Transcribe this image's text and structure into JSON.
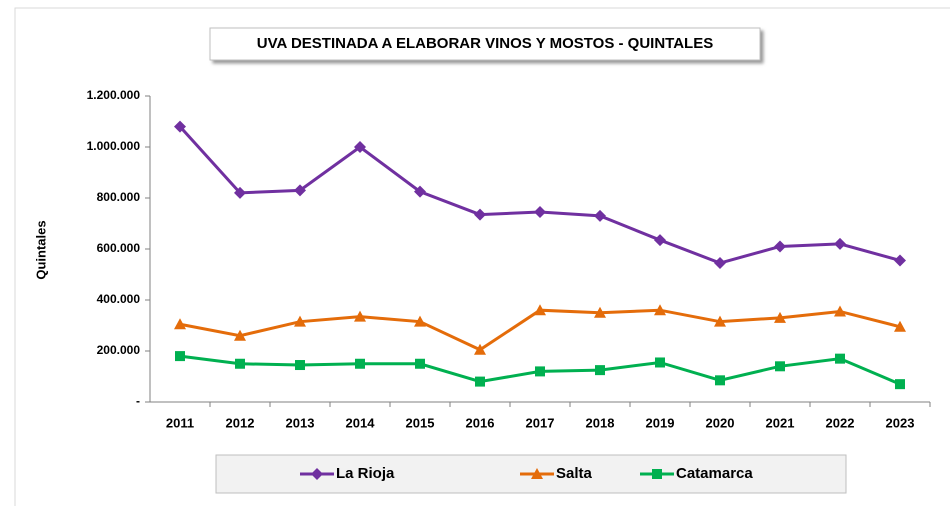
{
  "chart_data": {
    "type": "line",
    "title": "UVA DESTINADA A ELABORAR VINOS Y MOSTOS - QUINTALES",
    "y_label": "Quintales",
    "categories": [
      "2011",
      "2012",
      "2013",
      "2014",
      "2015",
      "2016",
      "2017",
      "2018",
      "2019",
      "2020",
      "2021",
      "2022",
      "2023"
    ],
    "series": [
      {
        "name": "La Rioja",
        "color": "#7030a0",
        "marker": "diamond",
        "values": [
          1080000,
          820000,
          830000,
          1000000,
          825000,
          735000,
          745000,
          730000,
          635000,
          545000,
          610000,
          620000,
          555000
        ]
      },
      {
        "name": "Salta",
        "color": "#e46c0a",
        "marker": "triangle",
        "values": [
          305000,
          260000,
          315000,
          335000,
          315000,
          205000,
          360000,
          350000,
          360000,
          315000,
          330000,
          355000,
          295000
        ]
      },
      {
        "name": "Catamarca",
        "color": "#00b050",
        "marker": "square",
        "values": [
          180000,
          150000,
          145000,
          150000,
          150000,
          80000,
          120000,
          125000,
          155000,
          85000,
          140000,
          170000,
          70000
        ]
      }
    ],
    "ylim": [
      0,
      1200000
    ],
    "yticks": [
      {
        "value": 0,
        "label": "-"
      },
      {
        "value": 200000,
        "label": "200.000"
      },
      {
        "value": 400000,
        "label": "400.000"
      },
      {
        "value": 600000,
        "label": "600.000"
      },
      {
        "value": 800000,
        "label": "800.000"
      },
      {
        "value": 1000000,
        "label": "1.000.000"
      },
      {
        "value": 1200000,
        "label": "1.200.000"
      }
    ],
    "grid": false,
    "legend": "bottom"
  }
}
